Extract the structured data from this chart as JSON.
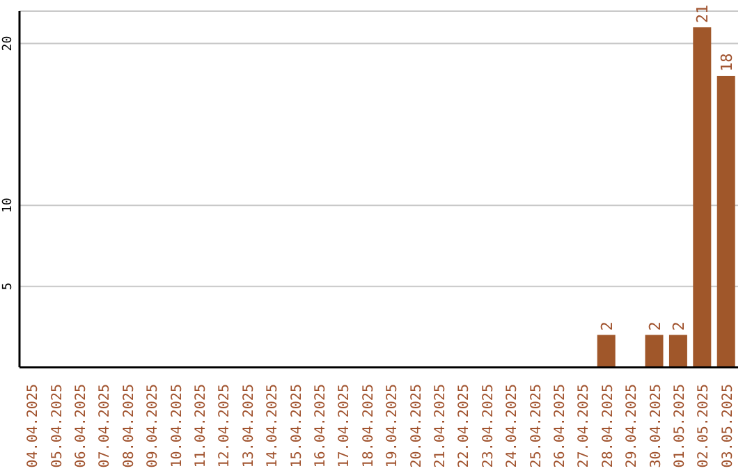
{
  "chart_data": {
    "type": "bar",
    "categories": [
      "04.04.2025",
      "05.04.2025",
      "06.04.2025",
      "07.04.2025",
      "08.04.2025",
      "09.04.2025",
      "10.04.2025",
      "11.04.2025",
      "12.04.2025",
      "13.04.2025",
      "14.04.2025",
      "15.04.2025",
      "16.04.2025",
      "17.04.2025",
      "18.04.2025",
      "19.04.2025",
      "20.04.2025",
      "21.04.2025",
      "22.04.2025",
      "23.04.2025",
      "24.04.2025",
      "25.04.2025",
      "26.04.2025",
      "27.04.2025",
      "28.04.2025",
      "29.04.2025",
      "30.04.2025",
      "01.05.2025",
      "02.05.2025",
      "03.05.2025"
    ],
    "values": [
      0,
      0,
      0,
      0,
      0,
      0,
      0,
      0,
      0,
      0,
      0,
      0,
      0,
      0,
      0,
      0,
      0,
      0,
      0,
      0,
      0,
      0,
      0,
      0,
      2,
      0,
      2,
      2,
      21,
      18
    ],
    "value_labels": [
      null,
      null,
      null,
      null,
      null,
      null,
      null,
      null,
      null,
      null,
      null,
      null,
      null,
      null,
      null,
      null,
      null,
      null,
      null,
      null,
      null,
      null,
      null,
      null,
      "2",
      null,
      "2",
      "2",
      "21",
      "18"
    ],
    "color": "#a0572a",
    "ylim": [
      0,
      22
    ],
    "yticks": [
      5,
      10,
      20
    ],
    "grid": "y"
  }
}
